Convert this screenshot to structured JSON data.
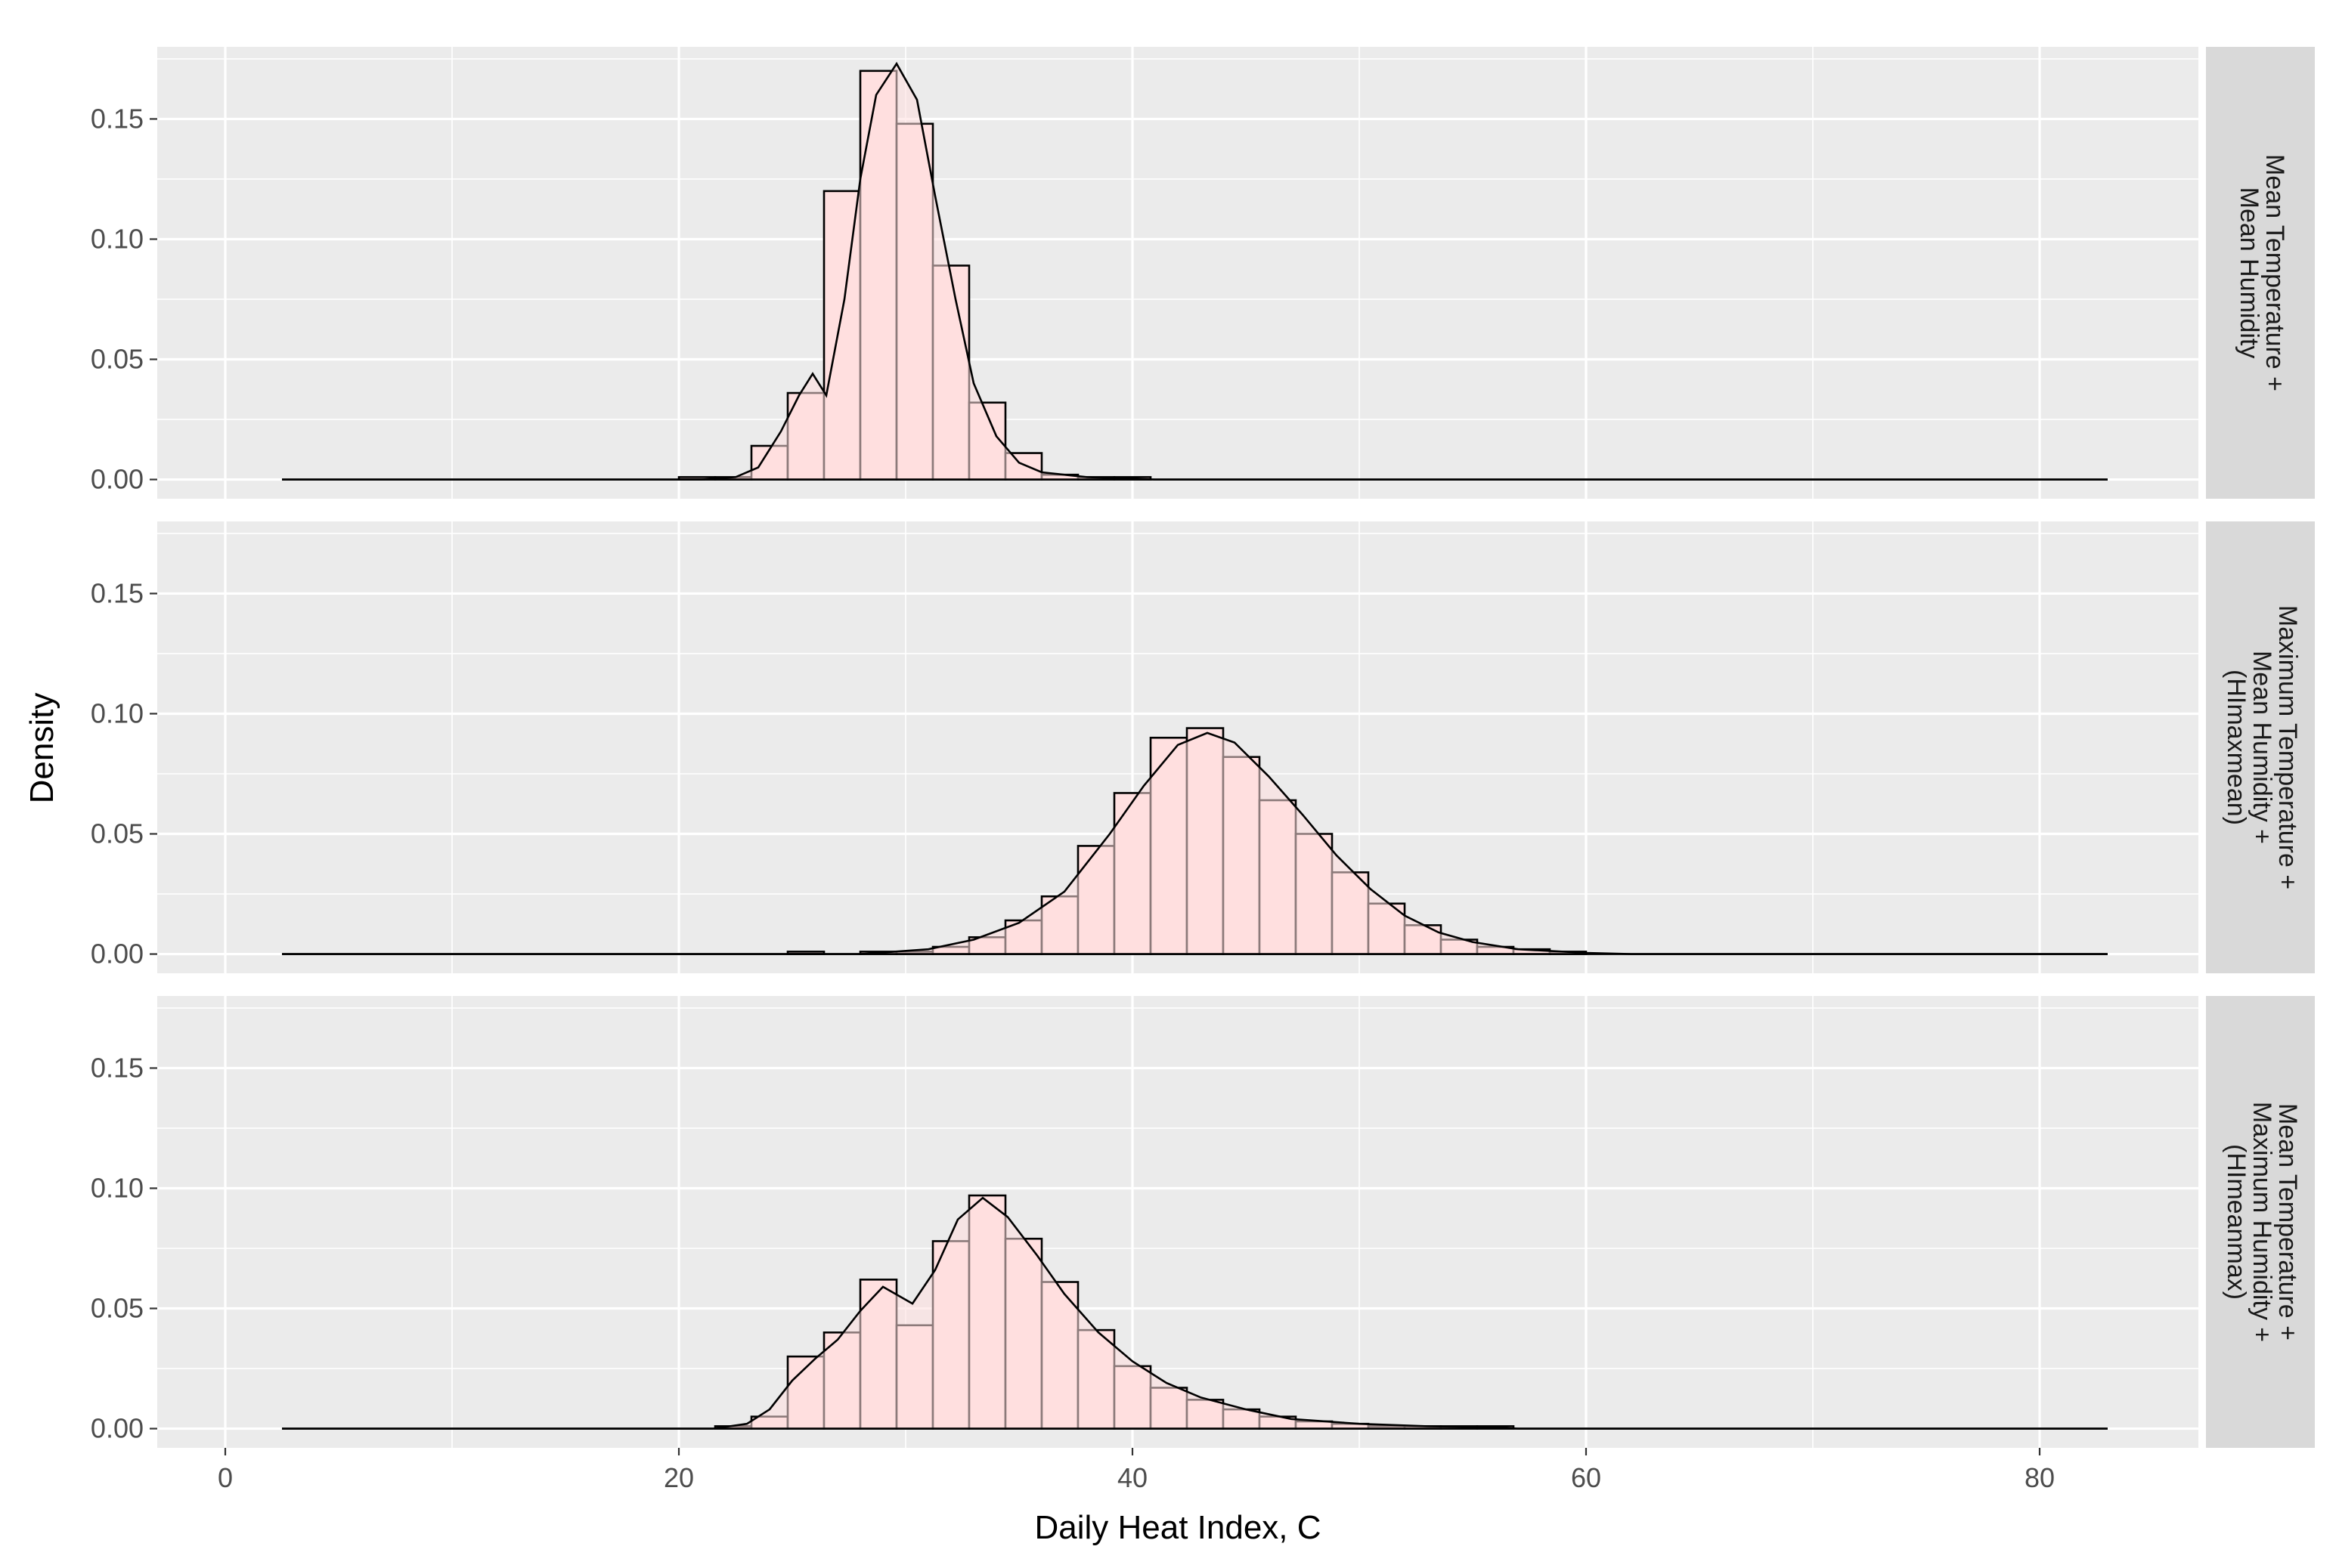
{
  "chart_data": {
    "type": "histogram",
    "xlabel": "Daily Heat Index, C",
    "ylabel": "Density",
    "xlim": [
      -3,
      87
    ],
    "ylim": [
      -0.008,
      0.18
    ],
    "x_ticks": [
      0,
      20,
      40,
      60,
      80
    ],
    "x_tick_labels": [
      "0",
      "20",
      "40",
      "60",
      "80"
    ],
    "y_ticks": [
      0,
      0.05,
      0.1,
      0.15
    ],
    "y_tick_labels": [
      "0.00",
      "0.05",
      "0.10",
      "0.15"
    ],
    "grid": true,
    "bin_width": 1.6,
    "colors": {
      "panel_background": "#ebebeb",
      "grid": "#ffffff",
      "strip_background": "#d9d9d9",
      "bar_fill": "#ffe0e0",
      "bar_outline": "#000000",
      "density_fill": "#ffdede",
      "density_line": "#000000"
    },
    "panels": [
      {
        "strip_lines": [
          "Mean Temperature +",
          "Mean Humidity"
        ],
        "x_range": [
          2.5,
          83
        ],
        "histogram": [
          {
            "x": 20.8,
            "density": 0.001
          },
          {
            "x": 22.4,
            "density": 0.001
          },
          {
            "x": 24.0,
            "density": 0.014
          },
          {
            "x": 25.6,
            "density": 0.036
          },
          {
            "x": 27.2,
            "density": 0.12
          },
          {
            "x": 28.8,
            "density": 0.17
          },
          {
            "x": 30.4,
            "density": 0.148
          },
          {
            "x": 32.0,
            "density": 0.089
          },
          {
            "x": 33.6,
            "density": 0.032
          },
          {
            "x": 35.2,
            "density": 0.011
          },
          {
            "x": 36.8,
            "density": 0.002
          },
          {
            "x": 38.4,
            "density": 0.001
          },
          {
            "x": 40.0,
            "density": 0.001
          }
        ],
        "density_curve": [
          {
            "x": 2.5,
            "y": 0
          },
          {
            "x": 21,
            "y": 0
          },
          {
            "x": 22.5,
            "y": 0.001
          },
          {
            "x": 23.5,
            "y": 0.005
          },
          {
            "x": 24.5,
            "y": 0.02
          },
          {
            "x": 25.3,
            "y": 0.035
          },
          {
            "x": 25.9,
            "y": 0.044
          },
          {
            "x": 26.5,
            "y": 0.035
          },
          {
            "x": 27.3,
            "y": 0.075
          },
          {
            "x": 28.0,
            "y": 0.125
          },
          {
            "x": 28.7,
            "y": 0.16
          },
          {
            "x": 29.6,
            "y": 0.173
          },
          {
            "x": 30.5,
            "y": 0.158
          },
          {
            "x": 31.3,
            "y": 0.118
          },
          {
            "x": 32.2,
            "y": 0.075
          },
          {
            "x": 33.0,
            "y": 0.04
          },
          {
            "x": 34.0,
            "y": 0.018
          },
          {
            "x": 35.0,
            "y": 0.007
          },
          {
            "x": 36.0,
            "y": 0.003
          },
          {
            "x": 38.0,
            "y": 0.001
          },
          {
            "x": 41,
            "y": 0
          },
          {
            "x": 83,
            "y": 0
          }
        ]
      },
      {
        "strip_lines": [
          "Maximum Temperature +",
          "Mean Humidity +",
          "(HImaxmean)"
        ],
        "x_range": [
          2.5,
          83
        ],
        "histogram": [
          {
            "x": 25.6,
            "density": 0.001
          },
          {
            "x": 28.8,
            "density": 0.001
          },
          {
            "x": 30.4,
            "density": 0.001
          },
          {
            "x": 32.0,
            "density": 0.003
          },
          {
            "x": 33.6,
            "density": 0.007
          },
          {
            "x": 35.2,
            "density": 0.014
          },
          {
            "x": 36.8,
            "density": 0.024
          },
          {
            "x": 38.4,
            "density": 0.045
          },
          {
            "x": 40.0,
            "density": 0.067
          },
          {
            "x": 41.6,
            "density": 0.09
          },
          {
            "x": 43.2,
            "density": 0.094
          },
          {
            "x": 44.8,
            "density": 0.082
          },
          {
            "x": 46.4,
            "density": 0.064
          },
          {
            "x": 48.0,
            "density": 0.05
          },
          {
            "x": 49.6,
            "density": 0.034
          },
          {
            "x": 51.2,
            "density": 0.021
          },
          {
            "x": 52.8,
            "density": 0.012
          },
          {
            "x": 54.4,
            "density": 0.006
          },
          {
            "x": 56.0,
            "density": 0.003
          },
          {
            "x": 57.6,
            "density": 0.002
          },
          {
            "x": 59.2,
            "density": 0.001
          }
        ],
        "density_curve": [
          {
            "x": 2.5,
            "y": 0
          },
          {
            "x": 28,
            "y": 0
          },
          {
            "x": 31,
            "y": 0.002
          },
          {
            "x": 33,
            "y": 0.006
          },
          {
            "x": 35,
            "y": 0.013
          },
          {
            "x": 37,
            "y": 0.026
          },
          {
            "x": 39,
            "y": 0.05
          },
          {
            "x": 40.5,
            "y": 0.07
          },
          {
            "x": 42,
            "y": 0.087
          },
          {
            "x": 43.3,
            "y": 0.092
          },
          {
            "x": 44.5,
            "y": 0.088
          },
          {
            "x": 46,
            "y": 0.074
          },
          {
            "x": 47.5,
            "y": 0.058
          },
          {
            "x": 49,
            "y": 0.041
          },
          {
            "x": 50.5,
            "y": 0.027
          },
          {
            "x": 52,
            "y": 0.016
          },
          {
            "x": 53.5,
            "y": 0.009
          },
          {
            "x": 55,
            "y": 0.005
          },
          {
            "x": 57,
            "y": 0.002
          },
          {
            "x": 60,
            "y": 0.0005
          },
          {
            "x": 62,
            "y": 0
          },
          {
            "x": 83,
            "y": 0
          }
        ]
      },
      {
        "strip_lines": [
          "Mean Temperature +",
          "Maximum Humidity +",
          "(HImeanmax)"
        ],
        "x_range": [
          2.5,
          83
        ],
        "histogram": [
          {
            "x": 22.4,
            "density": 0.001
          },
          {
            "x": 24.0,
            "density": 0.005
          },
          {
            "x": 25.6,
            "density": 0.03
          },
          {
            "x": 27.2,
            "density": 0.04
          },
          {
            "x": 28.8,
            "density": 0.062
          },
          {
            "x": 30.4,
            "density": 0.043
          },
          {
            "x": 32.0,
            "density": 0.078
          },
          {
            "x": 33.6,
            "density": 0.097
          },
          {
            "x": 35.2,
            "density": 0.079
          },
          {
            "x": 36.8,
            "density": 0.061
          },
          {
            "x": 38.4,
            "density": 0.041
          },
          {
            "x": 40.0,
            "density": 0.026
          },
          {
            "x": 41.6,
            "density": 0.017
          },
          {
            "x": 43.2,
            "density": 0.012
          },
          {
            "x": 44.8,
            "density": 0.008
          },
          {
            "x": 46.4,
            "density": 0.005
          },
          {
            "x": 48.0,
            "density": 0.003
          },
          {
            "x": 49.6,
            "density": 0.002
          },
          {
            "x": 51.2,
            "density": 0.001
          },
          {
            "x": 52.8,
            "density": 0.001
          },
          {
            "x": 54.4,
            "density": 0.001
          },
          {
            "x": 56.0,
            "density": 0.001
          }
        ],
        "density_curve": [
          {
            "x": 2.5,
            "y": 0
          },
          {
            "x": 21.5,
            "y": 0
          },
          {
            "x": 23,
            "y": 0.002
          },
          {
            "x": 24,
            "y": 0.008
          },
          {
            "x": 25,
            "y": 0.02
          },
          {
            "x": 26,
            "y": 0.029
          },
          {
            "x": 27,
            "y": 0.037
          },
          {
            "x": 28,
            "y": 0.049
          },
          {
            "x": 29,
            "y": 0.059
          },
          {
            "x": 30.3,
            "y": 0.052
          },
          {
            "x": 31.3,
            "y": 0.066
          },
          {
            "x": 32.3,
            "y": 0.087
          },
          {
            "x": 33.4,
            "y": 0.096
          },
          {
            "x": 34.5,
            "y": 0.088
          },
          {
            "x": 35.8,
            "y": 0.072
          },
          {
            "x": 37,
            "y": 0.056
          },
          {
            "x": 38.5,
            "y": 0.04
          },
          {
            "x": 40,
            "y": 0.028
          },
          {
            "x": 41.5,
            "y": 0.019
          },
          {
            "x": 43,
            "y": 0.013
          },
          {
            "x": 45,
            "y": 0.008
          },
          {
            "x": 47,
            "y": 0.004
          },
          {
            "x": 50,
            "y": 0.002
          },
          {
            "x": 53,
            "y": 0.001
          },
          {
            "x": 56,
            "y": 0.0005
          },
          {
            "x": 57,
            "y": 0
          },
          {
            "x": 83,
            "y": 0
          }
        ]
      }
    ]
  }
}
